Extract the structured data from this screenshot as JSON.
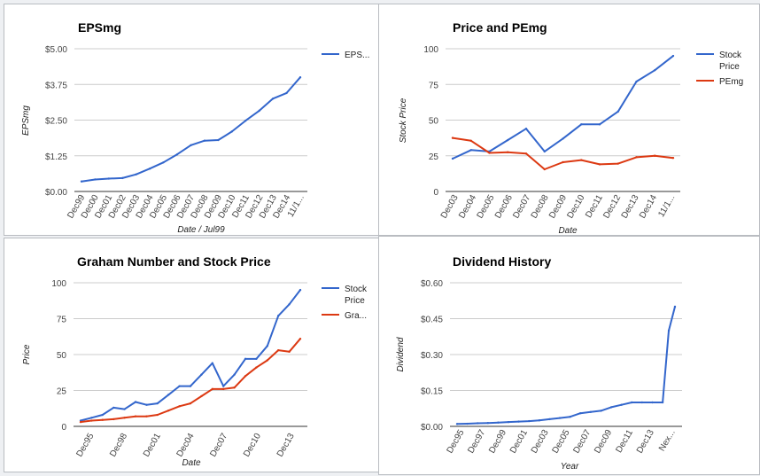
{
  "colors": {
    "stock": "#3366cc",
    "second": "#dc3912",
    "grid": "#cccccc",
    "axis": "#333333"
  },
  "chart_data": [
    {
      "type": "line",
      "title": "EPSmg",
      "xlabel": "Date / Jul99",
      "ylabel": "EPSmg",
      "categories": [
        "Dec99",
        "Dec00",
        "Dec01",
        "Dec02",
        "Dec03",
        "Dec04",
        "Dec05",
        "Dec06",
        "Dec07",
        "Dec08",
        "Dec09",
        "Dec10",
        "Dec11",
        "Dec12",
        "Dec13",
        "Dec14",
        "11/1..."
      ],
      "yticks": [
        "$0.00",
        "$1.25",
        "$2.50",
        "$3.75",
        "$5.00"
      ],
      "ylim": [
        0,
        5
      ],
      "legend_position": "right",
      "series": [
        {
          "name": "EPS...",
          "color": "#3366cc",
          "values": [
            0.35,
            0.42,
            0.45,
            0.47,
            0.6,
            0.8,
            1.02,
            1.3,
            1.62,
            1.78,
            1.8,
            2.1,
            2.48,
            2.83,
            3.25,
            3.45,
            4.0
          ]
        }
      ]
    },
    {
      "type": "line",
      "title": "Price and PEmg",
      "xlabel": "Date",
      "ylabel": "Stock Price",
      "categories": [
        "Dec03",
        "Dec04",
        "Dec05",
        "Dec06",
        "Dec07",
        "Dec08",
        "Dec09",
        "Dec10",
        "Dec11",
        "Dec12",
        "Dec13",
        "Dec14",
        "11/1..."
      ],
      "yticks": [
        "0",
        "25",
        "50",
        "75",
        "100"
      ],
      "ylim": [
        0,
        100
      ],
      "legend_position": "right",
      "series": [
        {
          "name": "Stock Price",
          "color": "#3366cc",
          "values": [
            23,
            29,
            28,
            36,
            44,
            28,
            37,
            47,
            47,
            56,
            77,
            85,
            95
          ]
        },
        {
          "name": "PEmg",
          "color": "#dc3912",
          "values": [
            37.5,
            35.5,
            27,
            27.5,
            26.5,
            15.5,
            20.5,
            22,
            19,
            19.5,
            24,
            25,
            23.5
          ]
        }
      ]
    },
    {
      "type": "line",
      "title": "Graham Number and Stock Price",
      "xlabel": "Date",
      "ylabel": "Price",
      "categories": [
        "Dec95",
        "Dec98",
        "Dec01",
        "Dec04",
        "Dec07",
        "Dec10",
        "Dec13"
      ],
      "yticks": [
        "0",
        "25",
        "50",
        "75",
        "100"
      ],
      "ylim": [
        0,
        100
      ],
      "legend_position": "right",
      "series": [
        {
          "name": "Stock Price",
          "color": "#3366cc",
          "x": [
            0,
            1,
            2,
            3,
            4,
            5,
            6,
            7,
            8,
            9,
            10,
            11,
            12,
            13,
            14,
            15,
            16,
            17,
            18,
            19,
            20
          ],
          "values": [
            4,
            6,
            8,
            13,
            12,
            17,
            15,
            16,
            22,
            28,
            28,
            36,
            44,
            28,
            36,
            47,
            47,
            56,
            77,
            85,
            95
          ]
        },
        {
          "name": "Gra...",
          "color": "#dc3912",
          "x": [
            0,
            1,
            2,
            3,
            4,
            5,
            6,
            7,
            8,
            9,
            10,
            11,
            12,
            13,
            14,
            15,
            16,
            17,
            18,
            19,
            20
          ],
          "values": [
            3,
            4,
            4.5,
            5,
            6,
            7,
            7,
            8,
            11,
            14,
            16,
            21,
            26,
            26,
            27,
            35,
            41,
            46,
            53,
            52,
            61
          ]
        }
      ]
    },
    {
      "type": "line",
      "title": "Dividend History",
      "xlabel": "Year",
      "ylabel": "Dividend",
      "categories": [
        "Dec95",
        "Dec97",
        "Dec99",
        "Dec01",
        "Dec03",
        "Dec05",
        "Dec07",
        "Dec09",
        "Dec11",
        "Dec13",
        "Nex..."
      ],
      "yticks": [
        "$0.00",
        "$0.15",
        "$0.30",
        "$0.45",
        "$0.60"
      ],
      "ylim": [
        0,
        0.6
      ],
      "series": [
        {
          "name": "",
          "color": "#3366cc",
          "x": [
            0,
            1,
            2,
            3,
            4,
            5,
            6,
            7,
            8,
            9,
            10,
            11,
            12,
            13,
            14,
            15,
            16,
            17,
            18,
            19,
            20,
            20.6,
            21.2
          ],
          "values": [
            0.01,
            0.011,
            0.013,
            0.014,
            0.016,
            0.018,
            0.02,
            0.022,
            0.025,
            0.03,
            0.035,
            0.04,
            0.055,
            0.06,
            0.065,
            0.08,
            0.09,
            0.1,
            0.1,
            0.1,
            0.1,
            0.4,
            0.5
          ]
        }
      ]
    }
  ]
}
